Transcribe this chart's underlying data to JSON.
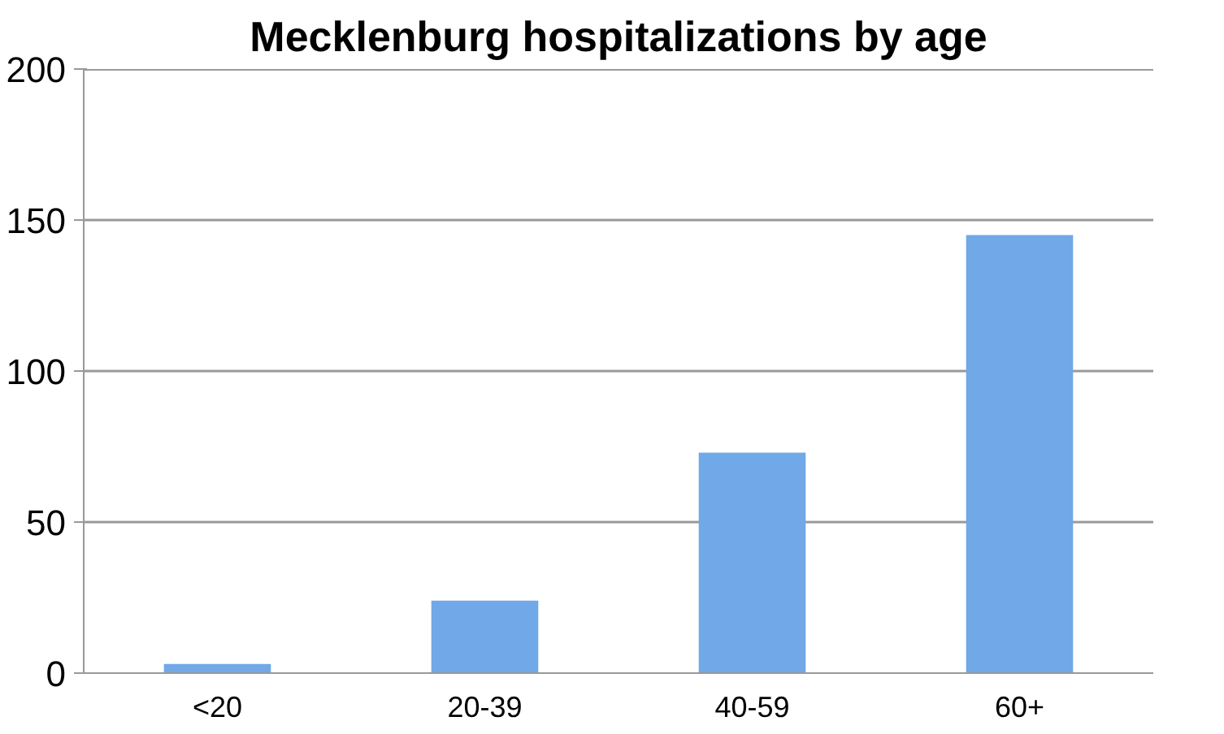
{
  "chart_data": {
    "type": "bar",
    "title": "Mecklenburg hospitalizations by age",
    "categories": [
      "<20",
      "20-39",
      "40-59",
      "60+"
    ],
    "values": [
      3,
      24,
      73,
      145
    ],
    "color": "#70a8e8",
    "ylim": [
      0,
      200
    ],
    "yticks": [
      0,
      50,
      100,
      150,
      200
    ],
    "grid": "y"
  }
}
